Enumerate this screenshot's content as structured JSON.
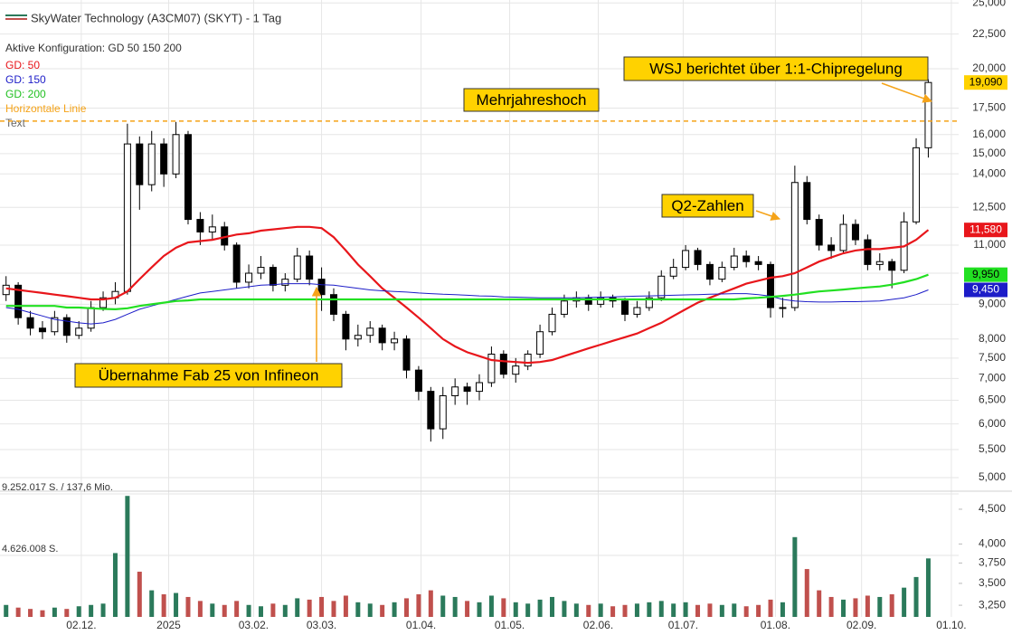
{
  "chart_data": [
    {
      "type": "candlestick",
      "title": "SkyWater Technology (A3CM07) (SKYT) - 1 Tag",
      "subtitle": "Aktive Konfiguration: GD 50 150 200",
      "open": [
        9300,
        9600,
        8600,
        8300,
        8200,
        8600,
        8100,
        8300,
        8900,
        9200,
        9400,
        15500,
        13500,
        15500,
        14000,
        16000,
        12000,
        11500,
        11700,
        11000,
        9700,
        10000,
        10200,
        9600,
        9800,
        10600,
        9800,
        9300,
        8700,
        8000,
        8100,
        8300,
        7900,
        8000,
        7200,
        6700,
        5900,
        6600,
        6800,
        6700,
        6900,
        7600,
        7100,
        7300,
        7600,
        8200,
        8700,
        9100,
        9200,
        9000,
        9200,
        9100,
        8700,
        8900,
        9200,
        9900,
        10200,
        10800,
        10300,
        9800,
        10200,
        10600,
        10400,
        10300,
        8900,
        8900,
        13600,
        12000,
        11000,
        10800,
        11800,
        11200,
        10300,
        10400,
        10100,
        11900,
        15300
      ],
      "high": [
        9900,
        9700,
        8800,
        8500,
        8800,
        8700,
        8500,
        9100,
        9400,
        9700,
        16600,
        15900,
        16200,
        15800,
        16700,
        16200,
        12300,
        12200,
        11900,
        11100,
        10300,
        10600,
        10300,
        10000,
        10900,
        10800,
        10200,
        9500,
        8800,
        8400,
        8500,
        8400,
        8200,
        8100,
        7300,
        6800,
        6800,
        7000,
        6900,
        7100,
        7800,
        7700,
        7500,
        7700,
        8400,
        8900,
        9300,
        9400,
        9300,
        9400,
        9300,
        9200,
        9100,
        9400,
        10100,
        10500,
        11000,
        10900,
        10400,
        10400,
        10900,
        10800,
        10600,
        10400,
        9200,
        14400,
        13900,
        12200,
        11300,
        12200,
        12000,
        11400,
        10700,
        10500,
        12300,
        15800,
        19300
      ],
      "low": [
        9100,
        8400,
        8100,
        8000,
        8100,
        7900,
        8000,
        8200,
        8800,
        9000,
        9300,
        12400,
        13200,
        13400,
        13800,
        11800,
        11000,
        11200,
        10800,
        9500,
        9500,
        9800,
        9400,
        9400,
        9700,
        9600,
        8800,
        8500,
        7700,
        7800,
        7900,
        7700,
        7700,
        7000,
        6500,
        5650,
        5700,
        6400,
        6400,
        6500,
        6800,
        7000,
        6900,
        7200,
        7500,
        8100,
        8600,
        8900,
        8800,
        8900,
        8900,
        8500,
        8600,
        8800,
        9100,
        9800,
        10100,
        10100,
        9600,
        9700,
        10100,
        10200,
        10100,
        8600,
        8600,
        8800,
        11800,
        10800,
        10500,
        10700,
        11000,
        10100,
        10100,
        9500,
        10000,
        11800,
        14800
      ],
      "close": [
        9600,
        8600,
        8300,
        8200,
        8600,
        8100,
        8300,
        8900,
        9200,
        9400,
        15500,
        13500,
        15500,
        14000,
        16000,
        12000,
        11500,
        11700,
        11000,
        9700,
        10000,
        10200,
        9600,
        9800,
        10600,
        9800,
        9300,
        8700,
        8000,
        8100,
        8300,
        7900,
        8000,
        7200,
        6700,
        5900,
        6600,
        6800,
        6700,
        6900,
        7600,
        7100,
        7300,
        7600,
        8200,
        8700,
        9100,
        9200,
        9000,
        9200,
        9100,
        8700,
        8900,
        9200,
        9900,
        10200,
        10800,
        10300,
        9800,
        10200,
        10600,
        10400,
        10300,
        8900,
        8900,
        13600,
        12000,
        11000,
        10800,
        11800,
        11200,
        10300,
        10400,
        10100,
        11900,
        15300,
        19090
      ],
      "close_label": "19,090",
      "close_label_color": "#ffd200",
      "series": [
        {
          "name": "GD: 50",
          "color": "#e8161b",
          "last_label": "11,580",
          "values": [
            9500,
            9450,
            9400,
            9350,
            9300,
            9250,
            9200,
            9150,
            9150,
            9200,
            9400,
            9800,
            10200,
            10600,
            10900,
            11100,
            11150,
            11200,
            11300,
            11400,
            11450,
            11550,
            11600,
            11650,
            11700,
            11700,
            11650,
            11300,
            10800,
            10300,
            9900,
            9500,
            9200,
            8900,
            8600,
            8300,
            8000,
            7800,
            7650,
            7550,
            7450,
            7420,
            7400,
            7380,
            7400,
            7450,
            7550,
            7650,
            7750,
            7850,
            7950,
            8050,
            8150,
            8300,
            8450,
            8650,
            8850,
            9050,
            9200,
            9350,
            9500,
            9650,
            9750,
            9850,
            9900,
            10000,
            10200,
            10400,
            10550,
            10700,
            10800,
            10850,
            10850,
            10900,
            10950,
            11200,
            11580
          ]
        },
        {
          "name": "GD: 150",
          "color": "#1c1cc8",
          "last_label": "9,450",
          "values": [
            8900,
            8850,
            8750,
            8650,
            8550,
            8500,
            8450,
            8420,
            8450,
            8550,
            8700,
            8850,
            8950,
            9050,
            9150,
            9250,
            9350,
            9400,
            9450,
            9500,
            9550,
            9600,
            9620,
            9650,
            9650,
            9650,
            9620,
            9600,
            9550,
            9500,
            9450,
            9420,
            9400,
            9380,
            9350,
            9330,
            9310,
            9300,
            9280,
            9260,
            9250,
            9230,
            9220,
            9210,
            9200,
            9200,
            9200,
            9200,
            9210,
            9220,
            9230,
            9240,
            9250,
            9260,
            9270,
            9280,
            9290,
            9300,
            9310,
            9320,
            9330,
            9330,
            9300,
            9250,
            9150,
            9100,
            9080,
            9070,
            9070,
            9080,
            9080,
            9090,
            9100,
            9150,
            9200,
            9300,
            9450
          ]
        },
        {
          "name": "GD: 200",
          "color": "#22e022",
          "last_label": "9,950",
          "values": [
            8950,
            8950,
            8950,
            8950,
            8950,
            8900,
            8900,
            8880,
            8860,
            8850,
            8880,
            8950,
            9000,
            9050,
            9100,
            9120,
            9150,
            9150,
            9150,
            9150,
            9150,
            9150,
            9150,
            9150,
            9150,
            9150,
            9150,
            9150,
            9150,
            9150,
            9150,
            9150,
            9150,
            9150,
            9150,
            9150,
            9150,
            9150,
            9150,
            9150,
            9150,
            9150,
            9150,
            9150,
            9150,
            9150,
            9150,
            9150,
            9150,
            9150,
            9150,
            9150,
            9150,
            9150,
            9150,
            9150,
            9150,
            9150,
            9150,
            9150,
            9150,
            9180,
            9200,
            9230,
            9260,
            9300,
            9350,
            9400,
            9430,
            9460,
            9500,
            9530,
            9560,
            9620,
            9700,
            9800,
            9950
          ]
        }
      ],
      "hlines": [
        {
          "name": "Horizontale Linie",
          "value": 16750,
          "color": "#f5a318"
        }
      ],
      "annotations": {
        "name": "Text",
        "items": [
          "WSJ berichtet über 1:1-Chipregelung",
          "Mehrjahreshoch",
          "Q2-Zahlen",
          "Übernahme Fab 25 von Infineon"
        ]
      },
      "xlim": [
        -0.5,
        78.5
      ],
      "xticks": [
        {
          "value": 6.2,
          "label": "02.12."
        },
        {
          "value": 13.4,
          "label": "2025"
        },
        {
          "value": 20.4,
          "label": "03.02."
        },
        {
          "value": 26.0,
          "label": "03.03."
        },
        {
          "value": 34.2,
          "label": "01.04."
        },
        {
          "value": 41.5,
          "label": "01.05."
        },
        {
          "value": 48.8,
          "label": "02.06."
        },
        {
          "value": 55.8,
          "label": "01.07."
        },
        {
          "value": 63.4,
          "label": "01.08."
        },
        {
          "value": 70.5,
          "label": "02.09."
        },
        {
          "value": 77.9,
          "label": "01.10."
        }
      ],
      "ylim": [
        4820,
        25250
      ],
      "log_y": true,
      "grid": true,
      "yticks": [
        {
          "value": 5000,
          "label": "5,000"
        },
        {
          "value": 5500,
          "label": "5,500"
        },
        {
          "value": 6000,
          "label": "6,000"
        },
        {
          "value": 6500,
          "label": "6,500"
        },
        {
          "value": 7000,
          "label": "7,000"
        },
        {
          "value": 7500,
          "label": "7,500"
        },
        {
          "value": 8000,
          "label": "8,000"
        },
        {
          "value": 9000,
          "label": "9,000"
        },
        {
          "value": 10000,
          "label": "10,000"
        },
        {
          "value": 11000,
          "label": "11,000"
        },
        {
          "value": 12500,
          "label": "12,500"
        },
        {
          "value": 14000,
          "label": "14,000"
        },
        {
          "value": 15000,
          "label": "15,000"
        },
        {
          "value": 16000,
          "label": "16,000"
        },
        {
          "value": 17500,
          "label": "17,500"
        },
        {
          "value": 20000,
          "label": "20,000"
        },
        {
          "value": 22500,
          "label": "22,500"
        },
        {
          "value": 25000,
          "label": "25,000"
        }
      ]
    },
    {
      "type": "volume",
      "up_color": "#2b7a5b",
      "down_color": "#c0504d",
      "values": [
        900000,
        700000,
        600000,
        500000,
        700000,
        600000,
        800000,
        900000,
        1000000,
        4800000,
        9100000,
        3400000,
        2000000,
        1700000,
        1800000,
        1500000,
        1200000,
        1000000,
        900000,
        1200000,
        900000,
        800000,
        1000000,
        900000,
        1400000,
        1300000,
        1500000,
        1200000,
        1600000,
        1100000,
        1000000,
        900000,
        1100000,
        1400000,
        1700000,
        2000000,
        1600000,
        1500000,
        1200000,
        1100000,
        1600000,
        1400000,
        1100000,
        1000000,
        1300000,
        1500000,
        1200000,
        1000000,
        900000,
        1000000,
        800000,
        900000,
        1000000,
        1100000,
        1200000,
        1000000,
        1100000,
        900000,
        1000000,
        900000,
        1000000,
        800000,
        900000,
        1300000,
        1100000,
        6000000,
        3600000,
        2000000,
        1500000,
        1300000,
        1400000,
        1600000,
        1500000,
        1700000,
        2200000,
        3000000,
        4400000
      ],
      "ylim": [
        0,
        9252017
      ],
      "yticks": [
        {
          "value": 9252017,
          "label": "9.252.017 S. / 137,6 Mio."
        },
        {
          "value": 4626008,
          "label": "4.626.008 S."
        }
      ],
      "y2lim": [
        3124,
        4740
      ],
      "log_y2": true,
      "y2ticks": [
        {
          "value": 3250,
          "label": "3,250"
        },
        {
          "value": 3500,
          "label": "3,500"
        },
        {
          "value": 3750,
          "label": "3,750"
        },
        {
          "value": 4000,
          "label": "4,000"
        },
        {
          "value": 4500,
          "label": "4,500"
        }
      ]
    }
  ]
}
